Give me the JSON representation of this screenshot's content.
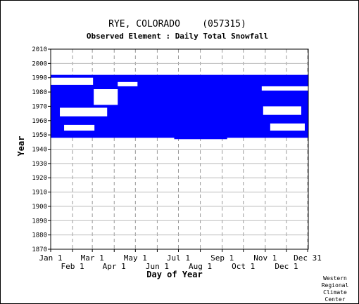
{
  "chart_data": {
    "type": "heatmap",
    "title": "RYE, COLORADO    (057315)",
    "subtitle": "Observed Element : Daily Total Snowfall",
    "xlabel": "Day of Year",
    "ylabel": "Year",
    "x_range_days": [
      1,
      366
    ],
    "ylim": [
      1870,
      2010
    ],
    "y_ticks": [
      1870,
      1880,
      1890,
      1900,
      1910,
      1920,
      1930,
      1940,
      1950,
      1960,
      1970,
      1980,
      1990,
      2000,
      2010
    ],
    "x_ticks_top": [
      {
        "label": "Jan 1",
        "day": 1
      },
      {
        "label": "Mar 1",
        "day": 60
      },
      {
        "label": "May 1",
        "day": 121
      },
      {
        "label": "Jul 1",
        "day": 182
      },
      {
        "label": "Sep 1",
        "day": 244
      },
      {
        "label": "Nov 1",
        "day": 305
      },
      {
        "label": "Dec 31",
        "day": 365
      }
    ],
    "x_ticks_bottom": [
      {
        "label": "Feb 1",
        "day": 32
      },
      {
        "label": "Apr 1",
        "day": 91
      },
      {
        "label": "Jun 1",
        "day": 152
      },
      {
        "label": "Aug 1",
        "day": 213
      },
      {
        "label": "Oct 1",
        "day": 274
      },
      {
        "label": "Dec 1",
        "day": 335
      }
    ],
    "grid": true,
    "data_color": "#0000ff",
    "coverage": [
      {
        "year_start": 1948,
        "year_end": 1991,
        "day_start": 1,
        "day_end": 365
      },
      {
        "year_start": 1947,
        "year_end": 1949,
        "day_start": 176,
        "day_end": 250
      }
    ],
    "gaps": [
      {
        "year_start": 1985,
        "year_end": 1989,
        "day_start": 1,
        "day_end": 60
      },
      {
        "year_start": 1984,
        "year_end": 1986,
        "day_start": 96,
        "day_end": 123
      },
      {
        "year_start": 1971,
        "year_end": 1981,
        "day_start": 62,
        "day_end": 95
      },
      {
        "year_start": 1963,
        "year_end": 1968,
        "day_start": 14,
        "day_end": 80
      },
      {
        "year_start": 1953,
        "year_end": 1956,
        "day_start": 20,
        "day_end": 62
      },
      {
        "year_start": 1981,
        "year_end": 1983,
        "day_start": 300,
        "day_end": 365
      },
      {
        "year_start": 1964,
        "year_end": 1969,
        "day_start": 302,
        "day_end": 355
      },
      {
        "year_start": 1953,
        "year_end": 1957,
        "day_start": 312,
        "day_end": 360
      }
    ],
    "credit": [
      "Western",
      "Regional",
      "Climate",
      "Center"
    ]
  }
}
